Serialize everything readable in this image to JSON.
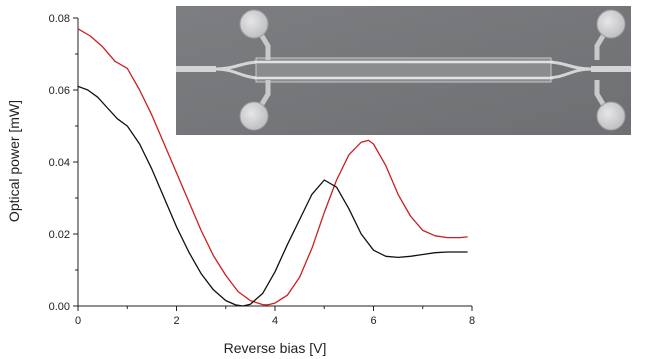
{
  "chart_data": {
    "type": "line",
    "title": "",
    "xlabel": "Reverse bias [V]",
    "ylabel": "Optical power [mW]",
    "xlim": [
      0,
      8
    ],
    "ylim": [
      0,
      0.08
    ],
    "xticks": [
      0,
      2,
      4,
      6,
      8
    ],
    "yticks": [
      "0.00",
      "0.02",
      "0.04",
      "0.06",
      "0.08"
    ],
    "grid": false,
    "legend": "none",
    "series": [
      {
        "color": "#cc1f1f",
        "x": [
          0,
          0.25,
          0.5,
          0.75,
          1.0,
          1.25,
          1.5,
          1.75,
          2.0,
          2.25,
          2.5,
          2.75,
          3.0,
          3.25,
          3.5,
          3.75,
          3.85,
          4.0,
          4.25,
          4.5,
          4.75,
          5.0,
          5.25,
          5.5,
          5.75,
          5.9,
          6.0,
          6.25,
          6.5,
          6.75,
          7.0,
          7.25,
          7.5,
          7.75,
          7.9
        ],
        "y": [
          0.077,
          0.075,
          0.072,
          0.068,
          0.066,
          0.06,
          0.053,
          0.045,
          0.037,
          0.029,
          0.021,
          0.014,
          0.0085,
          0.004,
          0.0015,
          0.0004,
          0.0003,
          0.0008,
          0.003,
          0.008,
          0.016,
          0.026,
          0.035,
          0.042,
          0.0455,
          0.046,
          0.045,
          0.039,
          0.031,
          0.025,
          0.021,
          0.0195,
          0.019,
          0.019,
          0.0192
        ]
      },
      {
        "color": "#111111",
        "x": [
          0,
          0.2,
          0.4,
          0.6,
          0.8,
          1.0,
          1.25,
          1.5,
          1.75,
          2.0,
          2.25,
          2.5,
          2.75,
          3.0,
          3.2,
          3.35,
          3.5,
          3.75,
          4.0,
          4.25,
          4.5,
          4.75,
          5.0,
          5.25,
          5.5,
          5.75,
          6.0,
          6.25,
          6.5,
          6.75,
          7.0,
          7.25,
          7.5,
          7.75,
          7.9
        ],
        "y": [
          0.061,
          0.06,
          0.058,
          0.055,
          0.052,
          0.05,
          0.045,
          0.038,
          0.03,
          0.022,
          0.015,
          0.009,
          0.0045,
          0.0015,
          0.0003,
          0.0,
          0.0005,
          0.0035,
          0.0095,
          0.017,
          0.024,
          0.031,
          0.035,
          0.033,
          0.027,
          0.02,
          0.0155,
          0.0138,
          0.0135,
          0.0138,
          0.0143,
          0.0148,
          0.015,
          0.015,
          0.015
        ]
      }
    ]
  },
  "inset": {
    "description_icon": "device-micrograph-image",
    "background": "#76777a",
    "waveguide_color": "#d8d9db",
    "pad_color": "#cfcfd2"
  }
}
